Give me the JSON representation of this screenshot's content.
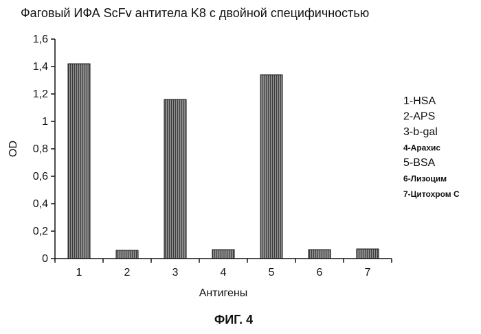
{
  "chart_data": {
    "type": "bar",
    "title": "Фаговый ИФА ScFv антитела K8 с двойной специфичностью",
    "xlabel": "Антигены",
    "ylabel": "OD",
    "categories": [
      "1",
      "2",
      "3",
      "4",
      "5",
      "6",
      "7"
    ],
    "values": [
      1.42,
      0.06,
      1.16,
      0.065,
      1.34,
      0.065,
      0.07
    ],
    "ylim": [
      0,
      1.6
    ],
    "yticks": [
      "0",
      "0,2",
      "0,4",
      "0,6",
      "0,8",
      "1",
      "1,2",
      "1,4",
      "1,6"
    ],
    "legend": [
      "1-HSA",
      "2-APS",
      "3-b-gal",
      "4-Арахис",
      "5-BSA",
      "6-Лизоцим",
      "7-Цитохром С"
    ],
    "legend_position": "right",
    "grid": false,
    "bar_color": "#8a8a8a"
  },
  "caption": "ФИГ. 4"
}
